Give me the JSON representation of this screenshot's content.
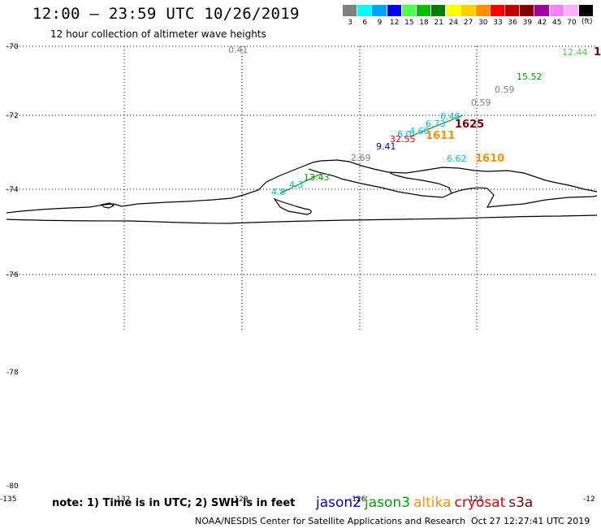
{
  "title": "12:00 — 23:59 UTC 10/26/2019",
  "subtitle": "12 hour collection of altimeter wave heights",
  "legend": {
    "unit": "(ft)",
    "bins": [
      {
        "label": "3",
        "color": "#808080"
      },
      {
        "label": "6",
        "color": "#00ffff"
      },
      {
        "label": "9",
        "color": "#00a0ff"
      },
      {
        "label": "12",
        "color": "#0000ff"
      },
      {
        "label": "15",
        "color": "#50ff50"
      },
      {
        "label": "18",
        "color": "#00c000"
      },
      {
        "label": "21",
        "color": "#008000"
      },
      {
        "label": "24",
        "color": "#ffff00"
      },
      {
        "label": "27",
        "color": "#ffd000"
      },
      {
        "label": "30",
        "color": "#ff9000"
      },
      {
        "label": "33",
        "color": "#ff0000"
      },
      {
        "label": "36",
        "color": "#c00000"
      },
      {
        "label": "39",
        "color": "#800000"
      },
      {
        "label": "42",
        "color": "#a000a0"
      },
      {
        "label": "45",
        "color": "#ff80ff"
      },
      {
        "label": "70",
        "color": "#ffb0ff"
      },
      {
        "label": "",
        "color": "#000000"
      }
    ]
  },
  "map": {
    "lat_labels": [
      "-70",
      "-72",
      "-74",
      "-76",
      "-78",
      "-80"
    ],
    "lon_labels": [
      "-135",
      "-132",
      "-129",
      "-126",
      "-123",
      "-12"
    ],
    "observations": [
      {
        "value": "0.41",
        "color": "#808080",
        "weight": "normal"
      },
      {
        "value": "12.44",
        "color": "#50c850",
        "weight": "normal"
      },
      {
        "value": "1",
        "color": "#800000",
        "weight": "bold"
      },
      {
        "value": "15.52",
        "color": "#00a000",
        "weight": "normal"
      },
      {
        "value": "0.59",
        "color": "#808080",
        "weight": "normal"
      },
      {
        "value": "0.59",
        "color": "#808080",
        "weight": "normal"
      },
      {
        "value": "6.48",
        "color": "#00c0e0",
        "weight": "normal"
      },
      {
        "value": "6.73",
        "color": "#00c0e0",
        "weight": "normal"
      },
      {
        "value": "1625",
        "color": "#800000",
        "weight": "bold"
      },
      {
        "value": "4.66",
        "color": "#00c0e0",
        "weight": "normal"
      },
      {
        "value": "6.0",
        "color": "#00c0e0",
        "weight": "normal"
      },
      {
        "value": "1611",
        "color": "#ff9000",
        "weight": "bold"
      },
      {
        "value": "32.55",
        "color": "#e00000",
        "weight": "normal"
      },
      {
        "value": "9.41",
        "color": "#0000c0",
        "weight": "normal"
      },
      {
        "value": "6.62",
        "color": "#00c0e0",
        "weight": "normal"
      },
      {
        "value": "1610",
        "color": "#ff9000",
        "weight": "bold"
      },
      {
        "value": "2.69",
        "color": "#808080",
        "weight": "normal"
      },
      {
        "value": "13.43",
        "color": "#00a000",
        "weight": "normal"
      },
      {
        "value": "4.3",
        "color": "#00c0e0",
        "weight": "normal"
      },
      {
        "value": "4.8",
        "color": "#00c0e0",
        "weight": "normal"
      }
    ]
  },
  "note": "note: 1) Time is in UTC; 2) SWH is in feet",
  "satellites": [
    {
      "name": "jason2",
      "color": "#0000e0"
    },
    {
      "name": "jason3",
      "color": "#00a000"
    },
    {
      "name": "altika",
      "color": "#ff9000"
    },
    {
      "name": "cryosat",
      "color": "#e00000"
    },
    {
      "name": "s3a",
      "color": "#800000"
    }
  ],
  "credit": "NOAA/NESDIS Center for Satellite Applications and Research",
  "timestamp": "Oct 27 12:27:41 UTC 2019"
}
